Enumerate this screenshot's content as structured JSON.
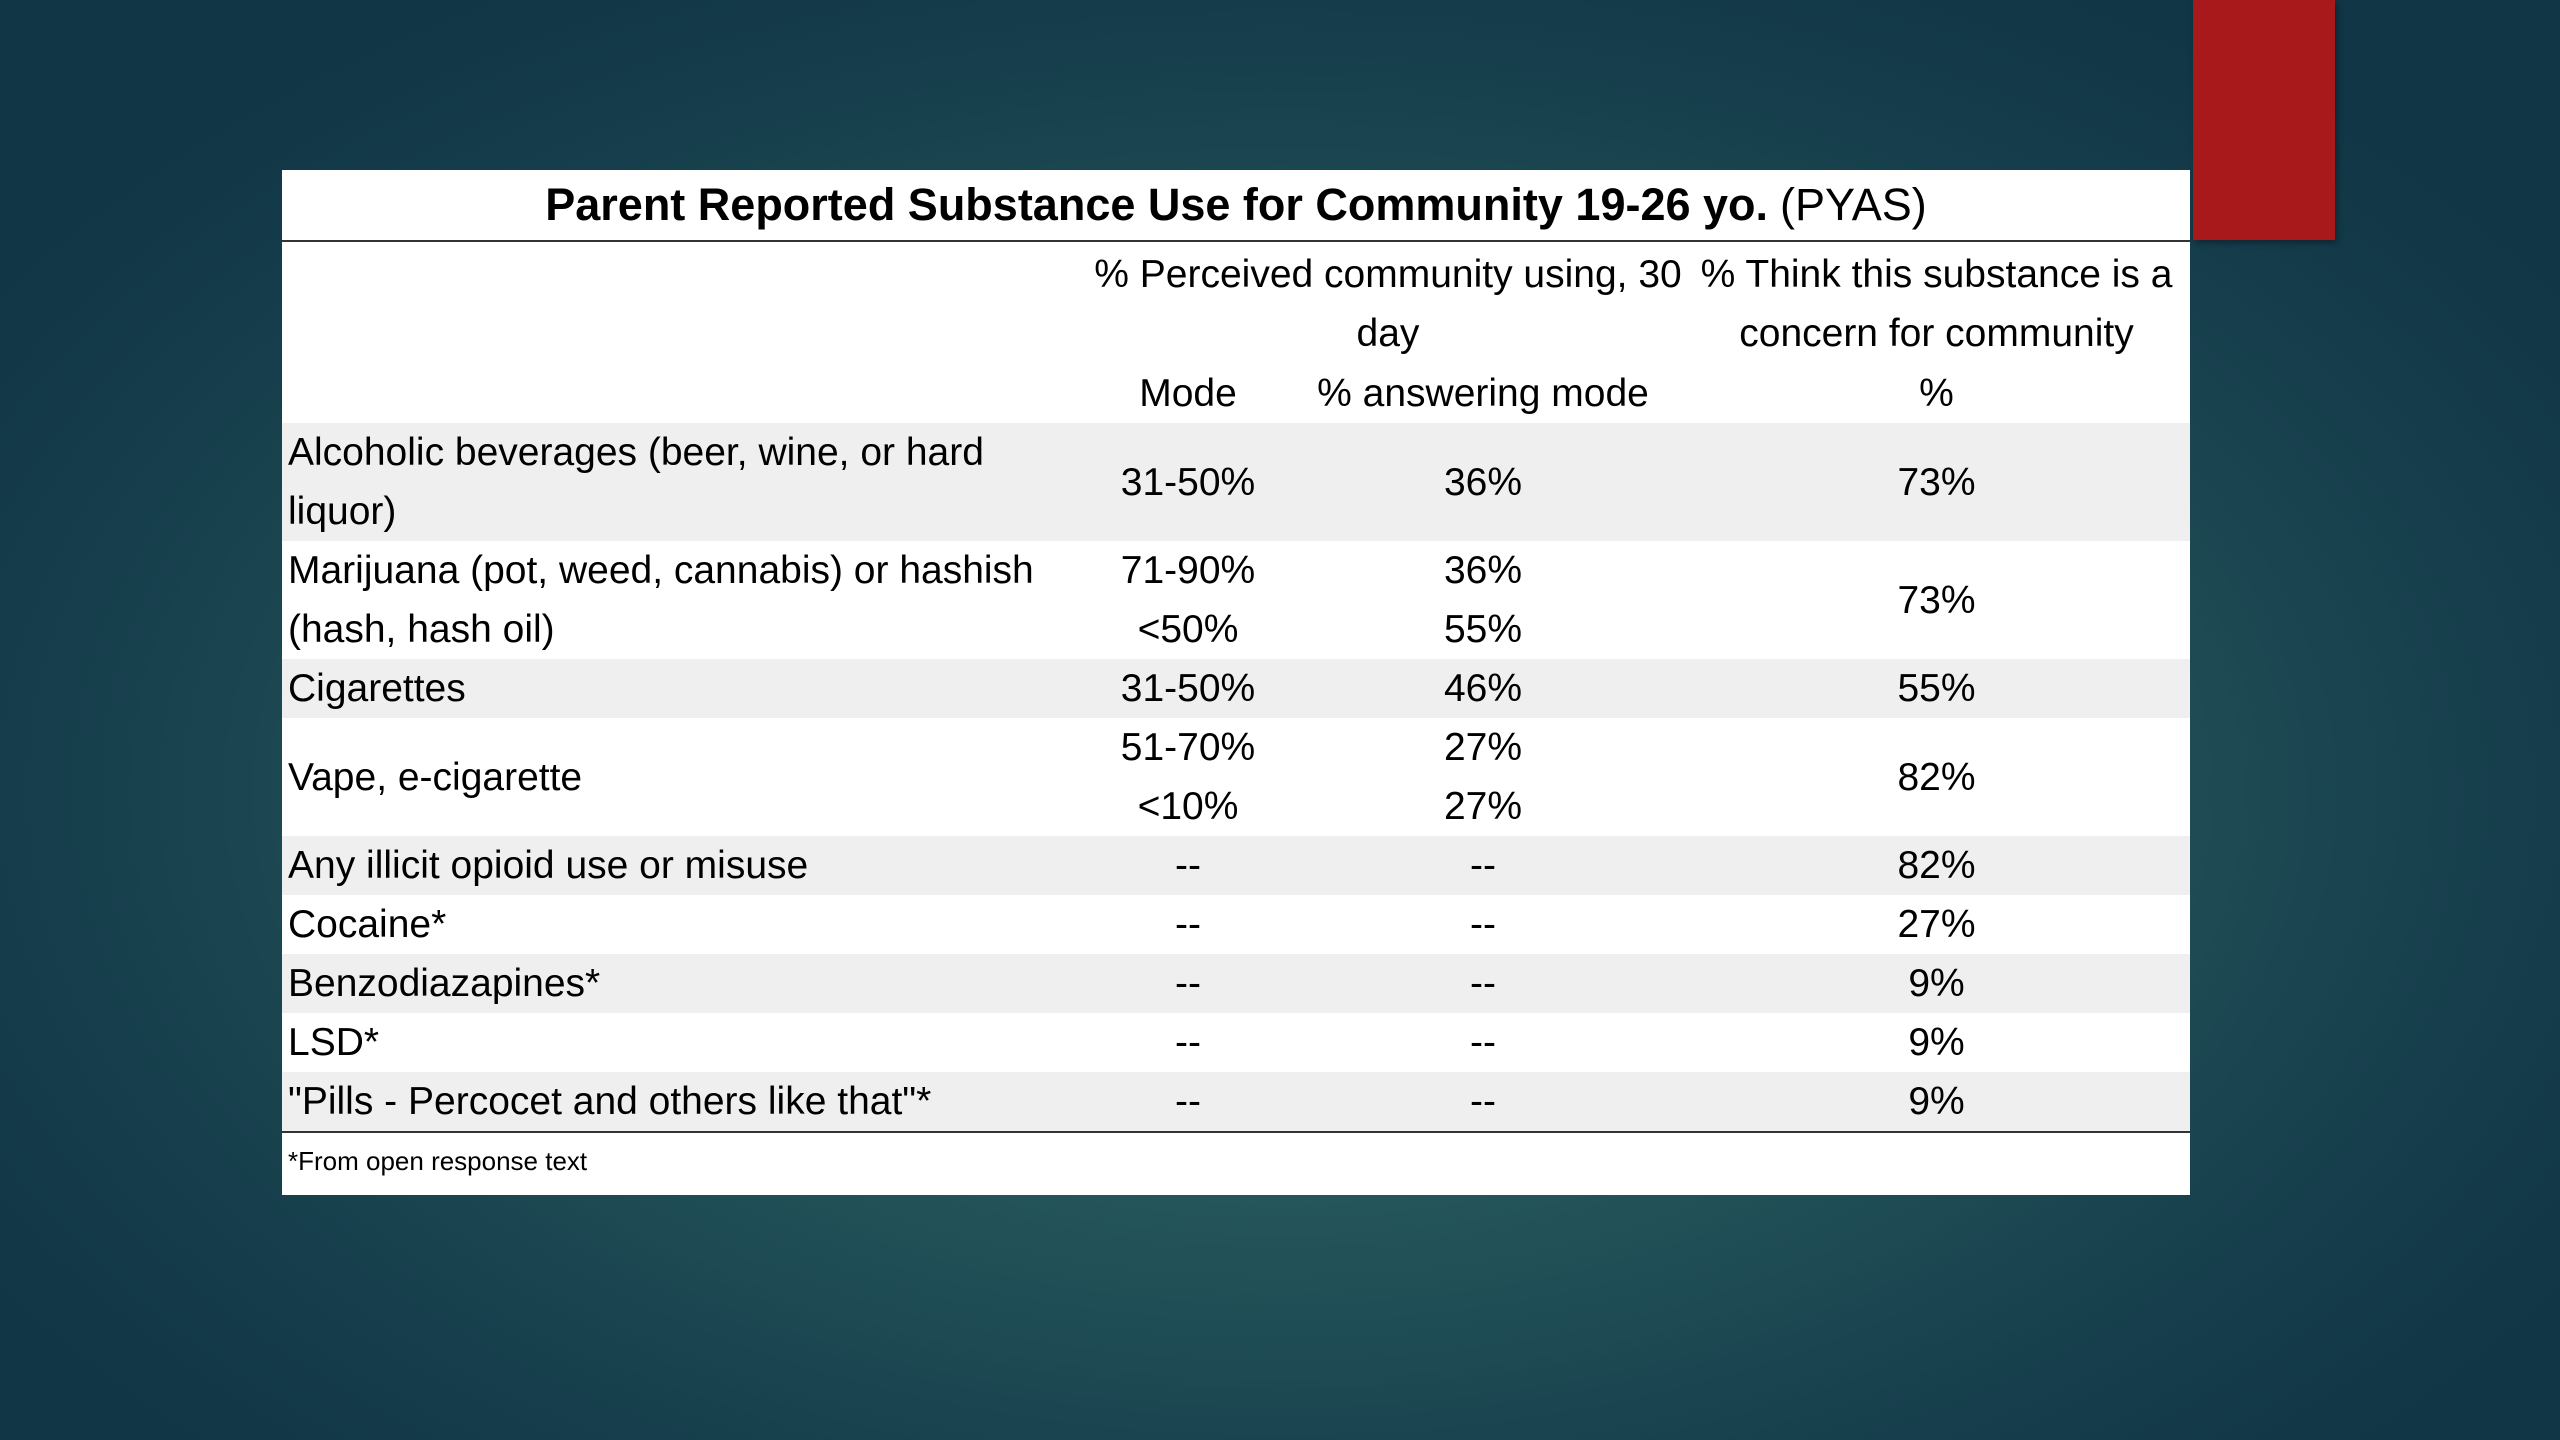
{
  "table": {
    "title_bold": "Parent Reported Substance Use for Community 19-26 yo.",
    "title_suffix": "(PYAS)",
    "headers": {
      "perceived_group": "% Perceived community using, 30 day",
      "concern_group": "% Think this substance is a concern for community",
      "mode": "Mode",
      "answering_mode": "% answering mode",
      "concern_pct": "%"
    },
    "rows": [
      {
        "substance": "Alcoholic beverages (beer, wine, or hard liquor)",
        "mode": [
          "31-50%"
        ],
        "answering": [
          "36%"
        ],
        "concern": "73%"
      },
      {
        "substance": "Marijuana (pot, weed, cannabis) or hashish (hash, hash oil)",
        "mode": [
          "71-90%",
          "<50%"
        ],
        "answering": [
          "36%",
          "55%"
        ],
        "concern": "73%"
      },
      {
        "substance": "Cigarettes",
        "mode": [
          "31-50%"
        ],
        "answering": [
          "46%"
        ],
        "concern": "55%"
      },
      {
        "substance": "Vape, e-cigarette",
        "mode": [
          "51-70%",
          "<10%"
        ],
        "answering": [
          "27%",
          "27%"
        ],
        "concern": "82%"
      },
      {
        "substance": "Any illicit opioid use or misuse",
        "mode": [
          "--"
        ],
        "answering": [
          "--"
        ],
        "concern": "82%"
      },
      {
        "substance": "Cocaine*",
        "mode": [
          "--"
        ],
        "answering": [
          "--"
        ],
        "concern": "27%"
      },
      {
        "substance": "Benzodiazapines*",
        "mode": [
          "--"
        ],
        "answering": [
          "--"
        ],
        "concern": "9%"
      },
      {
        "substance": "LSD*",
        "mode": [
          "--"
        ],
        "answering": [
          "--"
        ],
        "concern": "9%"
      },
      {
        "substance": "\"Pills - Percocet and others like that\"*",
        "mode": [
          "--"
        ],
        "answering": [
          "--"
        ],
        "concern": "9%"
      }
    ],
    "footnote": "*From open response text"
  },
  "colors": {
    "accent": "#a8191b",
    "background": "#24555a",
    "row_shade": "#efefef"
  }
}
